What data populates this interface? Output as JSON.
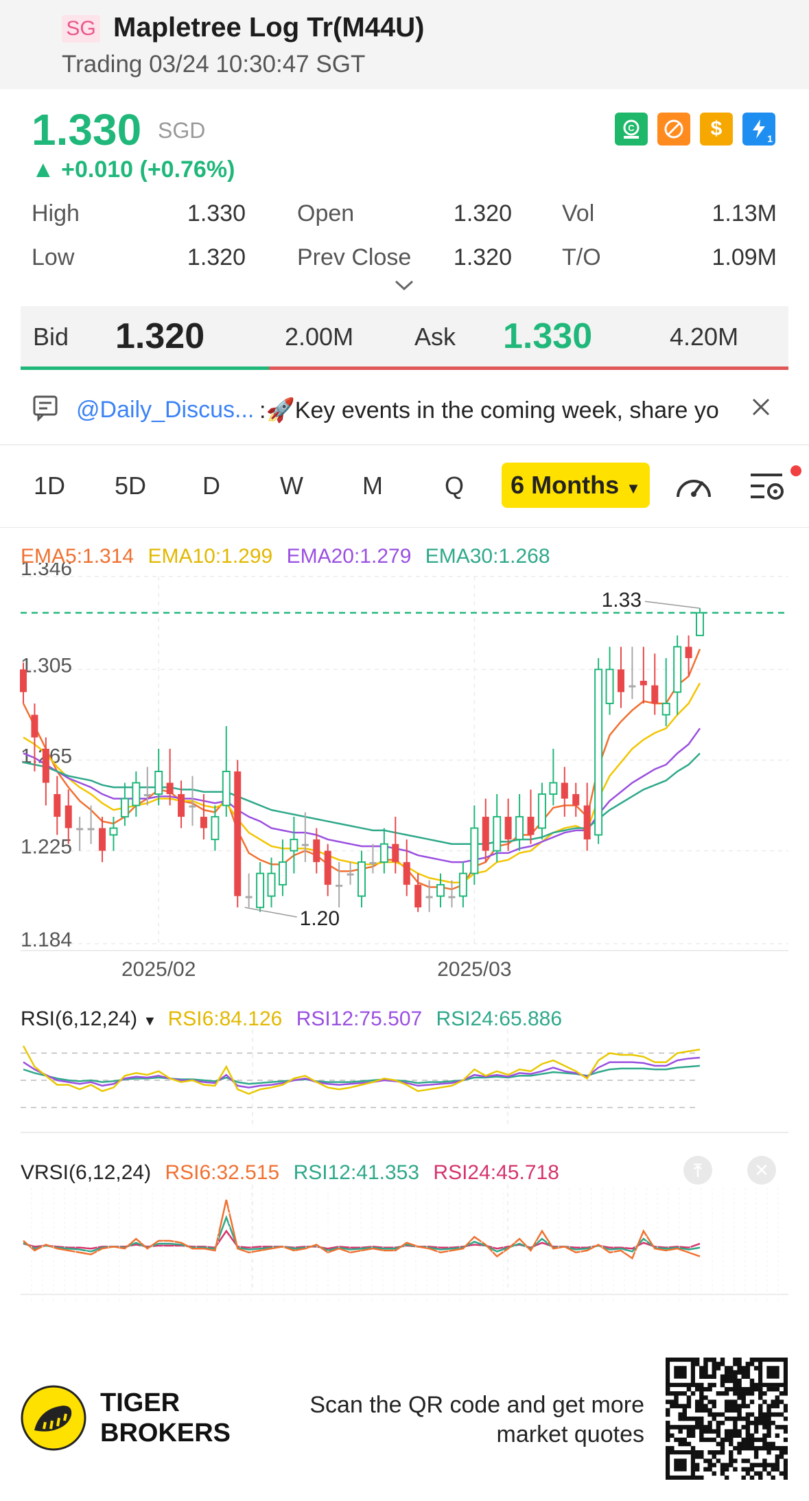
{
  "header": {
    "market_badge": "SG",
    "title": "Mapletree Log Tr(M44U)",
    "subtitle": "Trading 03/24 10:30:47 SGT"
  },
  "quote": {
    "price": "1.330",
    "currency": "SGD",
    "change": "+0.010 (+0.76%)",
    "stats": {
      "high_label": "High",
      "high": "1.330",
      "low_label": "Low",
      "low": "1.320",
      "open_label": "Open",
      "open": "1.320",
      "prev_close_label": "Prev Close",
      "prev_close": "1.320",
      "vol_label": "Vol",
      "vol": "1.13M",
      "to_label": "T/O",
      "to": "1.09M"
    },
    "status_icons": [
      "currency-exchange-icon",
      "no-short-icon",
      "dollar-icon",
      "flash-icon"
    ],
    "status_icon_badge": "1"
  },
  "bidask": {
    "bid_label": "Bid",
    "bid": "1.320",
    "bid_size": "2.00M",
    "ask_label": "Ask",
    "ask": "1.330",
    "ask_size": "4.20M",
    "bid_ratio": 0.29
  },
  "news": {
    "handle": "@Daily_Discus...",
    "text": ":🚀Key events in the coming week, share yo"
  },
  "tabs": {
    "items": [
      "1D",
      "5D",
      "D",
      "W",
      "M",
      "Q"
    ],
    "active": "6 Months"
  },
  "ema_legend": {
    "ema5": "EMA5:1.314",
    "ema10": "EMA10:1.299",
    "ema20": "EMA20:1.279",
    "ema30": "EMA30:1.268"
  },
  "colors": {
    "up": "#20b77a",
    "down": "#e8484a",
    "flat": "#a8a8a8",
    "ema5": "#f07030",
    "ema10": "#f2c500",
    "ema20": "#9a4fe0",
    "ema30": "#2ea88a",
    "rsi6": "#e8c800",
    "rsi12": "#9a4fe0",
    "rsi24": "#2ea88a",
    "vrsi6": "#f07030",
    "vrsi12": "#2ea88a",
    "vrsi24": "#d6336c"
  },
  "chart_data": [
    {
      "type": "candlestick",
      "title": "",
      "y_ticks": [
        "1.346",
        "1.305",
        "1.265",
        "1.225",
        "1.184"
      ],
      "ylim": [
        1.184,
        1.346
      ],
      "x_ticks": [
        "2025/02",
        "2025/03"
      ],
      "max_label": "1.33",
      "min_label": "1.20",
      "last_price": 1.33,
      "candles": [
        [
          1.305,
          1.295,
          1.308,
          1.29
        ],
        [
          1.285,
          1.275,
          1.29,
          1.26
        ],
        [
          1.27,
          1.255,
          1.275,
          1.245
        ],
        [
          1.25,
          1.24,
          1.258,
          1.232
        ],
        [
          1.245,
          1.235,
          1.252,
          1.228
        ],
        [
          1.235,
          1.235,
          1.24,
          1.225
        ],
        [
          1.235,
          1.235,
          1.245,
          1.228
        ],
        [
          1.235,
          1.225,
          1.24,
          1.22
        ],
        [
          1.232,
          1.235,
          1.24,
          1.225
        ],
        [
          1.24,
          1.248,
          1.255,
          1.236
        ],
        [
          1.245,
          1.255,
          1.26,
          1.24
        ],
        [
          1.25,
          1.25,
          1.262,
          1.245
        ],
        [
          1.25,
          1.26,
          1.27,
          1.245
        ],
        [
          1.255,
          1.25,
          1.27,
          1.245
        ],
        [
          1.25,
          1.24,
          1.256,
          1.235
        ],
        [
          1.245,
          1.245,
          1.258,
          1.236
        ],
        [
          1.24,
          1.235,
          1.25,
          1.23
        ],
        [
          1.23,
          1.24,
          1.245,
          1.225
        ],
        [
          1.245,
          1.26,
          1.28,
          1.24
        ],
        [
          1.26,
          1.205,
          1.265,
          1.2
        ],
        [
          1.205,
          1.205,
          1.215,
          1.2
        ],
        [
          1.2,
          1.215,
          1.22,
          1.198
        ],
        [
          1.205,
          1.215,
          1.222,
          1.2
        ],
        [
          1.21,
          1.22,
          1.23,
          1.205
        ],
        [
          1.225,
          1.23,
          1.24,
          1.215
        ],
        [
          1.228,
          1.228,
          1.242,
          1.22
        ],
        [
          1.23,
          1.22,
          1.235,
          1.215
        ],
        [
          1.225,
          1.21,
          1.228,
          1.205
        ],
        [
          1.21,
          1.21,
          1.22,
          1.2
        ],
        [
          1.215,
          1.215,
          1.22,
          1.21
        ],
        [
          1.205,
          1.22,
          1.225,
          1.2
        ],
        [
          1.22,
          1.22,
          1.228,
          1.215
        ],
        [
          1.22,
          1.228,
          1.235,
          1.215
        ],
        [
          1.228,
          1.22,
          1.24,
          1.215
        ],
        [
          1.22,
          1.21,
          1.23,
          1.205
        ],
        [
          1.21,
          1.2,
          1.215,
          1.198
        ],
        [
          1.205,
          1.205,
          1.212,
          1.198
        ],
        [
          1.205,
          1.21,
          1.215,
          1.2
        ],
        [
          1.205,
          1.205,
          1.212,
          1.2
        ],
        [
          1.205,
          1.215,
          1.22,
          1.2
        ],
        [
          1.215,
          1.235,
          1.245,
          1.21
        ],
        [
          1.24,
          1.225,
          1.248,
          1.22
        ],
        [
          1.225,
          1.24,
          1.25,
          1.22
        ],
        [
          1.24,
          1.23,
          1.248,
          1.225
        ],
        [
          1.23,
          1.24,
          1.25,
          1.225
        ],
        [
          1.24,
          1.232,
          1.252,
          1.228
        ],
        [
          1.235,
          1.25,
          1.255,
          1.23
        ],
        [
          1.25,
          1.255,
          1.27,
          1.245
        ],
        [
          1.255,
          1.248,
          1.262,
          1.24
        ],
        [
          1.25,
          1.245,
          1.255,
          1.24
        ],
        [
          1.245,
          1.23,
          1.255,
          1.225
        ],
        [
          1.232,
          1.305,
          1.31,
          1.228
        ],
        [
          1.29,
          1.305,
          1.315,
          1.285
        ],
        [
          1.305,
          1.295,
          1.315,
          1.288
        ],
        [
          1.298,
          1.298,
          1.315,
          1.292
        ],
        [
          1.3,
          1.298,
          1.315,
          1.29
        ],
        [
          1.298,
          1.29,
          1.312,
          1.285
        ],
        [
          1.285,
          1.29,
          1.31,
          1.28
        ],
        [
          1.295,
          1.315,
          1.32,
          1.285
        ],
        [
          1.315,
          1.31,
          1.32,
          1.302
        ],
        [
          1.32,
          1.33,
          1.332,
          1.32
        ]
      ],
      "ema_series": [
        {
          "name": "EMA5",
          "values": [
            1.29,
            1.28,
            1.27,
            1.26,
            1.253,
            1.247,
            1.243,
            1.238,
            1.237,
            1.24,
            1.245,
            1.248,
            1.252,
            1.251,
            1.247,
            1.246,
            1.243,
            1.242,
            1.248,
            1.234,
            1.224,
            1.221,
            1.219,
            1.219,
            1.223,
            1.225,
            1.223,
            1.219,
            1.216,
            1.216,
            1.217,
            1.218,
            1.221,
            1.221,
            1.217,
            1.211,
            1.209,
            1.209,
            1.208,
            1.21,
            1.218,
            1.22,
            1.227,
            1.228,
            1.232,
            1.232,
            1.238,
            1.244,
            1.245,
            1.245,
            1.24,
            1.262,
            1.276,
            1.282,
            1.287,
            1.291,
            1.29,
            1.29,
            1.298,
            1.302,
            1.314
          ]
        },
        {
          "name": "EMA10",
          "values": [
            1.275,
            1.272,
            1.268,
            1.262,
            1.257,
            1.253,
            1.25,
            1.246,
            1.243,
            1.244,
            1.245,
            1.246,
            1.248,
            1.248,
            1.247,
            1.247,
            1.245,
            1.244,
            1.246,
            1.239,
            1.233,
            1.23,
            1.227,
            1.226,
            1.226,
            1.226,
            1.225,
            1.223,
            1.221,
            1.22,
            1.219,
            1.219,
            1.22,
            1.22,
            1.218,
            1.215,
            1.213,
            1.212,
            1.211,
            1.211,
            1.215,
            1.216,
            1.22,
            1.221,
            1.224,
            1.225,
            1.229,
            1.233,
            1.235,
            1.236,
            1.234,
            1.248,
            1.258,
            1.264,
            1.27,
            1.274,
            1.277,
            1.279,
            1.285,
            1.29,
            1.299
          ]
        },
        {
          "name": "EMA20",
          "values": [
            1.268,
            1.266,
            1.263,
            1.26,
            1.257,
            1.255,
            1.253,
            1.25,
            1.248,
            1.248,
            1.248,
            1.248,
            1.249,
            1.249,
            1.248,
            1.248,
            1.247,
            1.246,
            1.247,
            1.243,
            1.24,
            1.238,
            1.235,
            1.234,
            1.233,
            1.233,
            1.232,
            1.23,
            1.229,
            1.228,
            1.227,
            1.227,
            1.227,
            1.226,
            1.225,
            1.223,
            1.222,
            1.221,
            1.22,
            1.22,
            1.221,
            1.222,
            1.224,
            1.224,
            1.226,
            1.227,
            1.229,
            1.231,
            1.233,
            1.234,
            1.234,
            1.241,
            1.247,
            1.251,
            1.255,
            1.258,
            1.261,
            1.263,
            1.268,
            1.272,
            1.279
          ]
        },
        {
          "name": "EMA30",
          "values": [
            1.264,
            1.263,
            1.262,
            1.26,
            1.258,
            1.257,
            1.256,
            1.254,
            1.253,
            1.253,
            1.253,
            1.253,
            1.253,
            1.253,
            1.252,
            1.252,
            1.251,
            1.251,
            1.251,
            1.249,
            1.247,
            1.245,
            1.243,
            1.242,
            1.241,
            1.24,
            1.239,
            1.238,
            1.237,
            1.236,
            1.235,
            1.234,
            1.234,
            1.233,
            1.232,
            1.231,
            1.23,
            1.229,
            1.228,
            1.228,
            1.228,
            1.228,
            1.229,
            1.229,
            1.23,
            1.23,
            1.231,
            1.233,
            1.234,
            1.235,
            1.235,
            1.239,
            1.243,
            1.246,
            1.249,
            1.252,
            1.254,
            1.256,
            1.26,
            1.263,
            1.268
          ]
        }
      ]
    },
    {
      "type": "line",
      "legend": [
        "RSI(6,12,24)",
        "RSI6:84.126",
        "RSI12:75.507",
        "RSI24:65.886"
      ],
      "ylim": [
        0,
        100
      ],
      "series": [
        {
          "name": "RSI6",
          "values": [
            88,
            65,
            55,
            45,
            45,
            40,
            45,
            38,
            42,
            55,
            58,
            56,
            60,
            52,
            48,
            50,
            45,
            44,
            65,
            40,
            35,
            40,
            42,
            45,
            52,
            55,
            48,
            42,
            40,
            42,
            45,
            48,
            52,
            50,
            45,
            38,
            40,
            42,
            44,
            50,
            62,
            55,
            60,
            56,
            62,
            60,
            68,
            72,
            66,
            60,
            52,
            72,
            80,
            78,
            78,
            76,
            70,
            70,
            80,
            82,
            84
          ]
        },
        {
          "name": "RSI12",
          "values": [
            70,
            62,
            56,
            50,
            48,
            46,
            48,
            44,
            46,
            52,
            54,
            53,
            55,
            52,
            50,
            50,
            48,
            47,
            56,
            44,
            42,
            44,
            45,
            47,
            50,
            52,
            48,
            46,
            45,
            46,
            47,
            48,
            50,
            49,
            47,
            44,
            45,
            46,
            47,
            50,
            56,
            54,
            56,
            54,
            58,
            57,
            60,
            64,
            60,
            58,
            54,
            64,
            70,
            70,
            70,
            69,
            66,
            66,
            72,
            74,
            75
          ]
        },
        {
          "name": "RSI24",
          "values": [
            62,
            58,
            55,
            52,
            50,
            49,
            50,
            48,
            49,
            51,
            52,
            52,
            53,
            52,
            51,
            51,
            50,
            49,
            53,
            48,
            46,
            47,
            48,
            49,
            50,
            51,
            49,
            48,
            48,
            48,
            49,
            50,
            51,
            50,
            49,
            47,
            48,
            48,
            49,
            50,
            53,
            53,
            54,
            53,
            55,
            55,
            57,
            59,
            58,
            57,
            55,
            59,
            62,
            63,
            63,
            63,
            62,
            62,
            64,
            65,
            66
          ]
        }
      ]
    },
    {
      "type": "line",
      "legend": [
        "VRSI(6,12,24)",
        "RSI6:32.515",
        "RSI12:41.353",
        "RSI24:45.718"
      ],
      "ylim": [
        0,
        100
      ],
      "series": [
        {
          "name": "RSI6",
          "values": [
            48,
            38,
            44,
            40,
            38,
            36,
            34,
            40,
            42,
            40,
            50,
            40,
            48,
            48,
            46,
            40,
            40,
            38,
            90,
            40,
            36,
            38,
            40,
            42,
            38,
            40,
            44,
            36,
            40,
            36,
            38,
            40,
            38,
            38,
            46,
            42,
            40,
            36,
            38,
            40,
            52,
            44,
            32,
            40,
            50,
            38,
            58,
            40,
            42,
            36,
            38,
            44,
            36,
            38,
            30,
            58,
            40,
            38,
            40,
            36,
            32
          ]
        },
        {
          "name": "RSI12",
          "values": [
            46,
            40,
            43,
            41,
            40,
            39,
            37,
            41,
            42,
            41,
            46,
            41,
            45,
            45,
            44,
            41,
            41,
            40,
            72,
            41,
            39,
            40,
            41,
            42,
            40,
            41,
            43,
            38,
            41,
            39,
            40,
            41,
            40,
            40,
            44,
            42,
            41,
            39,
            40,
            41,
            47,
            43,
            37,
            41,
            45,
            40,
            50,
            41,
            42,
            39,
            40,
            43,
            39,
            40,
            37,
            50,
            41,
            40,
            41,
            39,
            41
          ]
        },
        {
          "name": "RSI24",
          "values": [
            45,
            42,
            43,
            42,
            41,
            41,
            40,
            42,
            42,
            42,
            44,
            42,
            43,
            43,
            43,
            42,
            42,
            41,
            58,
            42,
            41,
            42,
            42,
            42,
            41,
            42,
            42,
            40,
            42,
            41,
            41,
            42,
            41,
            41,
            43,
            42,
            42,
            41,
            41,
            42,
            44,
            43,
            40,
            42,
            44,
            41,
            46,
            42,
            42,
            41,
            41,
            43,
            41,
            41,
            40,
            46,
            42,
            41,
            42,
            41,
            45
          ]
        }
      ]
    }
  ],
  "footer": {
    "brand_line1": "TIGER",
    "brand_line2": "BROKERS",
    "cta_line1": "Scan the QR code and get more",
    "cta_line2": "market quotes"
  }
}
